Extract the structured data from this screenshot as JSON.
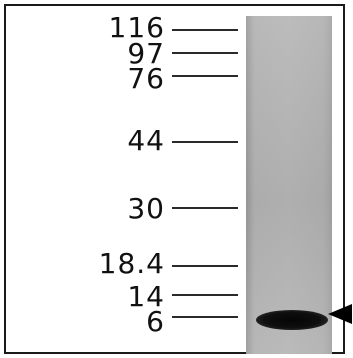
{
  "markers": {
    "m116": "116",
    "m97": "97",
    "m76": "76",
    "m44": "44",
    "m30": "30",
    "m18_4": "18.4",
    "m14": "14",
    "m6": "6"
  }
}
